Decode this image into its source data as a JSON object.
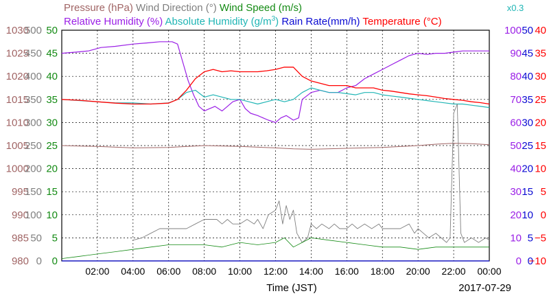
{
  "chart_data": {
    "type": "line",
    "title_line1": [
      {
        "text": "Pressure (hPa)",
        "color": "#a06464"
      },
      {
        "text": "Wind Direction (°)",
        "color": "#7f7f7f"
      },
      {
        "text": "Wind Speed (m/s)",
        "color": "#138a13"
      }
    ],
    "title_line2": [
      {
        "text": "Relative Humidity (%)",
        "color": "#9a1ee6"
      },
      {
        "text": "Absolute Humidity (g/m",
        "sup": "3",
        "suffix": ")",
        "color": "#1fb5b5"
      },
      {
        "text": "Rain Rate(mm/h)",
        "color": "#0a0ad2"
      },
      {
        "text": "Temperature (°C)",
        "color": "#ff0000"
      }
    ],
    "scale_note": {
      "text": "x0.3",
      "color": "#1fb5b5"
    },
    "xlabel": "Time (JST)",
    "date_label": "2017-07-29",
    "x_range_hours": [
      0,
      24
    ],
    "x_ticks": [
      "02:00",
      "04:00",
      "06:00",
      "08:00",
      "10:00",
      "12:00",
      "14:00",
      "16:00",
      "18:00",
      "20:00",
      "22:00",
      "00:00"
    ],
    "x_tick_hours": [
      2,
      4,
      6,
      8,
      10,
      12,
      14,
      16,
      18,
      20,
      22,
      24
    ],
    "grid": true,
    "axes": {
      "pressure": {
        "color": "#a06464",
        "side": "left",
        "range": [
          980,
          1030
        ],
        "ticks": [
          "980",
          "985",
          "990",
          "995",
          "1000",
          "1005",
          "1010",
          "1015",
          "1020",
          "1025",
          "1030"
        ]
      },
      "wind_direction": {
        "color": "#7f7f7f",
        "side": "left",
        "range": [
          0,
          500
        ],
        "ticks": [
          "0",
          "50",
          "100",
          "150",
          "200",
          "250",
          "300",
          "350",
          "400",
          "450",
          "500"
        ]
      },
      "wind_speed": {
        "color": "#138a13",
        "side": "left",
        "range": [
          0,
          50
        ],
        "ticks": [
          "0",
          "5",
          "10",
          "15",
          "20",
          "25",
          "30",
          "35",
          "40",
          "45",
          "50"
        ]
      },
      "relative_humidity": {
        "color": "#9a1ee6",
        "side": "right",
        "range": [
          0,
          100
        ],
        "ticks": [
          "0",
          "10",
          "20",
          "30",
          "40",
          "50",
          "60",
          "70",
          "80",
          "90",
          "100"
        ]
      },
      "rain_rate": {
        "color": "#0a0ad2",
        "side": "right",
        "range": [
          0,
          50
        ],
        "ticks": [
          "0",
          "5",
          "10",
          "15",
          "20",
          "25",
          "30",
          "35",
          "40",
          "45",
          "50"
        ]
      },
      "temperature": {
        "color": "#ff0000",
        "side": "right",
        "range": [
          -10,
          40
        ],
        "ticks": [
          "−10",
          "−5",
          "0",
          "5",
          "10",
          "15",
          "20",
          "25",
          "30",
          "35",
          "40"
        ]
      }
    },
    "series": [
      {
        "key": "relative_humidity",
        "color": "#9a1ee6",
        "axis": "relative_humidity",
        "width": 1.2,
        "points": [
          [
            0,
            90
          ],
          [
            0.8,
            90.5
          ],
          [
            1.5,
            91
          ],
          [
            2.2,
            92.5
          ],
          [
            3,
            93
          ],
          [
            4,
            94
          ],
          [
            4.8,
            94.5
          ],
          [
            5.5,
            95
          ],
          [
            6.2,
            95
          ],
          [
            6.5,
            94
          ],
          [
            6.8,
            86
          ],
          [
            7.1,
            78
          ],
          [
            7.4,
            72
          ],
          [
            7.7,
            67
          ],
          [
            8,
            65
          ],
          [
            8.3,
            66
          ],
          [
            8.6,
            67
          ],
          [
            9,
            65
          ],
          [
            9.3,
            67
          ],
          [
            9.6,
            69
          ],
          [
            10,
            70
          ],
          [
            10.3,
            66
          ],
          [
            10.6,
            64
          ],
          [
            11,
            63
          ],
          [
            11.3,
            62
          ],
          [
            11.6,
            61
          ],
          [
            12,
            60
          ],
          [
            12.3,
            62
          ],
          [
            12.6,
            63
          ],
          [
            13,
            61
          ],
          [
            13.3,
            62
          ],
          [
            13.5,
            70
          ],
          [
            14,
            73
          ],
          [
            14.5,
            74
          ],
          [
            15,
            73
          ],
          [
            15.5,
            73
          ],
          [
            16,
            75
          ],
          [
            16.5,
            76
          ],
          [
            17,
            79
          ],
          [
            17.5,
            81
          ],
          [
            18,
            83
          ],
          [
            18.5,
            85
          ],
          [
            19,
            87
          ],
          [
            19.5,
            89
          ],
          [
            20,
            90
          ],
          [
            20.5,
            89.5
          ],
          [
            21,
            90
          ],
          [
            21.5,
            90
          ],
          [
            22,
            90.5
          ],
          [
            22.5,
            91
          ],
          [
            23,
            91
          ],
          [
            23.5,
            91
          ],
          [
            24,
            91
          ]
        ]
      },
      {
        "key": "absolute_humidity",
        "color": "#1fb5b5",
        "axis": "relative_humidity",
        "width": 1.2,
        "points": [
          [
            0,
            70
          ],
          [
            1,
            69.5
          ],
          [
            2,
            69
          ],
          [
            3,
            68.5
          ],
          [
            4,
            68.5
          ],
          [
            5,
            68
          ],
          [
            6,
            68.5
          ],
          [
            6.5,
            70
          ],
          [
            7,
            73
          ],
          [
            7.5,
            74
          ],
          [
            8,
            71
          ],
          [
            8.5,
            72
          ],
          [
            9,
            71
          ],
          [
            9.5,
            70
          ],
          [
            10,
            70
          ],
          [
            10.5,
            69
          ],
          [
            11,
            68
          ],
          [
            11.5,
            69
          ],
          [
            12,
            70
          ],
          [
            12.5,
            69
          ],
          [
            13,
            70
          ],
          [
            13.5,
            73
          ],
          [
            14,
            75
          ],
          [
            14.5,
            74
          ],
          [
            15,
            73
          ],
          [
            15.5,
            73
          ],
          [
            16,
            72.5
          ],
          [
            16.5,
            72
          ],
          [
            17,
            73
          ],
          [
            17.5,
            73
          ],
          [
            18,
            72
          ],
          [
            18.5,
            71.5
          ],
          [
            19,
            71
          ],
          [
            19.5,
            70.5
          ],
          [
            20,
            70
          ],
          [
            20.5,
            69.5
          ],
          [
            21,
            69
          ],
          [
            21.5,
            68.5
          ],
          [
            22,
            68
          ],
          [
            22.5,
            68
          ],
          [
            23,
            67.5
          ],
          [
            23.5,
            67
          ],
          [
            24,
            66.5
          ]
        ]
      },
      {
        "key": "temperature",
        "color": "#ff0000",
        "axis": "temperature",
        "width": 1.3,
        "points": [
          [
            0,
            25
          ],
          [
            1,
            24.8
          ],
          [
            2,
            24.5
          ],
          [
            3,
            24.2
          ],
          [
            4,
            24
          ],
          [
            5,
            24
          ],
          [
            6,
            24.2
          ],
          [
            6.5,
            25
          ],
          [
            7,
            27
          ],
          [
            7.5,
            29.5
          ],
          [
            8,
            31
          ],
          [
            8.5,
            31.5
          ],
          [
            9,
            31
          ],
          [
            9.5,
            31.2
          ],
          [
            10,
            31
          ],
          [
            10.5,
            31
          ],
          [
            11,
            31
          ],
          [
            11.5,
            31.2
          ],
          [
            12,
            31.5
          ],
          [
            12.5,
            32
          ],
          [
            13,
            32
          ],
          [
            13.5,
            30
          ],
          [
            14,
            29
          ],
          [
            14.5,
            28.5
          ],
          [
            15,
            28
          ],
          [
            15.5,
            28
          ],
          [
            16,
            28
          ],
          [
            16.5,
            27.5
          ],
          [
            17,
            27.5
          ],
          [
            17.5,
            27.5
          ],
          [
            18,
            27
          ],
          [
            18.5,
            26.8
          ],
          [
            19,
            26.5
          ],
          [
            19.5,
            26.2
          ],
          [
            20,
            26
          ],
          [
            20.5,
            25.8
          ],
          [
            21,
            25.5
          ],
          [
            21.5,
            25.2
          ],
          [
            22,
            25
          ],
          [
            22.5,
            24.8
          ],
          [
            23,
            24.5
          ],
          [
            23.5,
            24.3
          ],
          [
            24,
            24
          ]
        ]
      },
      {
        "key": "pressure",
        "color": "#a06464",
        "axis": "pressure",
        "width": 1.0,
        "points": [
          [
            0,
            1005
          ],
          [
            2,
            1004.8
          ],
          [
            4,
            1004.5
          ],
          [
            6,
            1004.6
          ],
          [
            8,
            1005
          ],
          [
            10,
            1004.8
          ],
          [
            12,
            1004.5
          ],
          [
            13,
            1004.3
          ],
          [
            14,
            1004.2
          ],
          [
            16,
            1004.4
          ],
          [
            18,
            1004.6
          ],
          [
            20,
            1005
          ],
          [
            21,
            1005.3
          ],
          [
            22,
            1005.5
          ],
          [
            23,
            1005.4
          ],
          [
            24,
            1005.2
          ]
        ]
      },
      {
        "key": "wind_direction",
        "color": "#7f7f7f",
        "axis": "wind_direction",
        "width": 0.9,
        "points": [
          [
            4,
            45
          ],
          [
            4.5,
            50
          ],
          [
            5,
            60
          ],
          [
            5.5,
            70
          ],
          [
            6,
            70
          ],
          [
            6.5,
            70
          ],
          [
            7,
            70
          ],
          [
            7.5,
            80
          ],
          [
            8,
            90
          ],
          [
            8.3,
            90
          ],
          [
            8.7,
            90
          ],
          [
            9,
            80
          ],
          [
            9.3,
            90
          ],
          [
            9.6,
            80
          ],
          [
            10,
            80
          ],
          [
            10.4,
            90
          ],
          [
            10.8,
            80
          ],
          [
            11,
            90
          ],
          [
            11.3,
            70
          ],
          [
            11.6,
            100
          ],
          [
            12,
            110
          ],
          [
            12.2,
            130
          ],
          [
            12.4,
            80
          ],
          [
            12.6,
            120
          ],
          [
            12.8,
            90
          ],
          [
            13,
            110
          ],
          [
            13.2,
            60
          ],
          [
            13.5,
            40
          ],
          [
            13.8,
            50
          ],
          [
            14,
            80
          ],
          [
            14.3,
            70
          ],
          [
            14.6,
            80
          ],
          [
            15,
            70
          ],
          [
            15.3,
            80
          ],
          [
            15.6,
            70
          ],
          [
            16,
            70
          ],
          [
            16.3,
            80
          ],
          [
            16.6,
            70
          ],
          [
            17,
            80
          ],
          [
            17.4,
            70
          ],
          [
            17.8,
            80
          ],
          [
            18,
            70
          ],
          [
            18.5,
            70
          ],
          [
            19,
            70
          ],
          [
            19.5,
            80
          ],
          [
            19.8,
            60
          ],
          [
            20,
            70
          ],
          [
            20.3,
            60
          ],
          [
            20.6,
            50
          ],
          [
            21,
            60
          ],
          [
            21.3,
            50
          ],
          [
            21.6,
            40
          ],
          [
            21.8,
            50
          ],
          [
            22,
            320
          ],
          [
            22.2,
            340
          ],
          [
            22.4,
            60
          ],
          [
            22.6,
            40
          ],
          [
            23,
            50
          ],
          [
            23.4,
            40
          ],
          [
            23.8,
            50
          ],
          [
            24,
            45
          ]
        ]
      },
      {
        "key": "wind_speed",
        "color": "#138a13",
        "axis": "wind_speed",
        "width": 0.8,
        "points": [
          [
            0,
            0.5
          ],
          [
            1,
            1
          ],
          [
            2,
            1.5
          ],
          [
            3,
            2
          ],
          [
            4,
            2.5
          ],
          [
            5,
            3
          ],
          [
            6,
            3.5
          ],
          [
            7,
            3.5
          ],
          [
            8,
            3.5
          ],
          [
            9,
            3
          ],
          [
            10,
            4
          ],
          [
            11,
            3.5
          ],
          [
            12,
            4
          ],
          [
            12.5,
            5
          ],
          [
            13,
            3
          ],
          [
            13.5,
            4
          ],
          [
            14,
            5
          ],
          [
            15,
            4.5
          ],
          [
            16,
            4
          ],
          [
            17,
            3.5
          ],
          [
            18,
            3
          ],
          [
            19,
            3
          ],
          [
            20,
            2.5
          ],
          [
            21,
            3
          ],
          [
            22,
            3
          ],
          [
            23,
            3
          ],
          [
            24,
            3
          ]
        ]
      },
      {
        "key": "rain_rate",
        "color": "#0a0ad2",
        "axis": "rain_rate",
        "width": 1.2,
        "points": [
          [
            0,
            0
          ],
          [
            24,
            0
          ]
        ]
      }
    ]
  }
}
